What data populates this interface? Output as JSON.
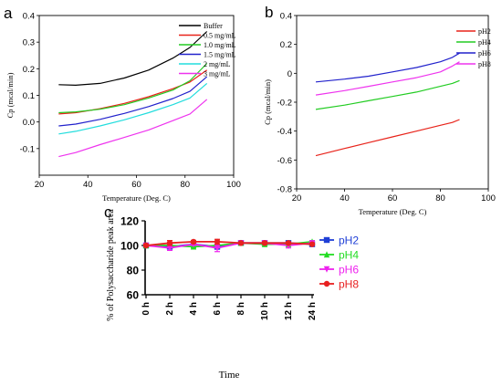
{
  "chart_data": [
    {
      "panel": "a",
      "type": "line",
      "xlabel": "Temperature (Deg. C)",
      "ylabel": "Cp (mcal/min)",
      "xlim": [
        20,
        100
      ],
      "ylim": [
        -0.2,
        0.4
      ],
      "xticks": [
        20,
        40,
        60,
        80,
        100
      ],
      "yticks": [
        -0.1,
        0.0,
        0.1,
        0.2,
        0.3,
        0.4
      ],
      "ytick_labels": [
        "-0.1",
        "0.0",
        "0.1",
        "0.2",
        "0.3",
        "0.4"
      ],
      "grid": false,
      "legend": "top-right",
      "series": [
        {
          "name": "Buffer",
          "color": "#000000",
          "x": [
            28,
            35,
            45,
            55,
            65,
            75,
            82,
            89
          ],
          "y": [
            0.14,
            0.138,
            0.145,
            0.165,
            0.195,
            0.24,
            0.28,
            0.34
          ]
        },
        {
          "name": "0.5 mg/mL",
          "color": "#e8231a",
          "x": [
            28,
            35,
            45,
            55,
            65,
            75,
            82,
            89
          ],
          "y": [
            0.03,
            0.035,
            0.05,
            0.07,
            0.095,
            0.125,
            0.15,
            0.195
          ]
        },
        {
          "name": "1.0 mg/mL",
          "color": "#22cc22",
          "x": [
            28,
            35,
            45,
            55,
            65,
            75,
            82,
            89
          ],
          "y": [
            0.035,
            0.038,
            0.048,
            0.065,
            0.09,
            0.12,
            0.155,
            0.22
          ]
        },
        {
          "name": "1.5 mg/mL",
          "color": "#2222cc",
          "x": [
            28,
            35,
            45,
            55,
            65,
            75,
            82,
            89
          ],
          "y": [
            -0.015,
            -0.008,
            0.01,
            0.032,
            0.058,
            0.088,
            0.115,
            0.17
          ]
        },
        {
          "name": "2 mg/mL",
          "color": "#22dddd",
          "x": [
            28,
            35,
            45,
            55,
            65,
            75,
            82,
            89
          ],
          "y": [
            -0.045,
            -0.035,
            -0.015,
            0.008,
            0.035,
            0.065,
            0.09,
            0.145
          ]
        },
        {
          "name": "3 mg/mL",
          "color": "#ee33ee",
          "x": [
            28,
            35,
            45,
            55,
            65,
            75,
            82,
            89
          ],
          "y": [
            -0.13,
            -0.115,
            -0.085,
            -0.058,
            -0.03,
            0.005,
            0.03,
            0.085
          ]
        }
      ]
    },
    {
      "panel": "b",
      "type": "line",
      "xlabel": "Temperature (Deg. C)",
      "ylabel": "Cp (mcal/min)",
      "xlim": [
        20,
        100
      ],
      "ylim": [
        -0.8,
        0.4
      ],
      "xticks": [
        20,
        40,
        60,
        80,
        100
      ],
      "yticks": [
        -0.8,
        -0.6,
        -0.4,
        -0.2,
        0.0,
        0.2,
        0.4
      ],
      "ytick_labels": [
        "-0.8",
        "-0.6",
        "-0.4",
        "-0.2",
        "0",
        "0.2",
        "0.4"
      ],
      "grid": false,
      "legend": "top-right",
      "series": [
        {
          "name": "pH2",
          "color": "#e8231a",
          "x": [
            28,
            40,
            50,
            60,
            70,
            80,
            85,
            88
          ],
          "y": [
            -0.57,
            -0.52,
            -0.48,
            -0.44,
            -0.4,
            -0.36,
            -0.34,
            -0.32
          ]
        },
        {
          "name": "pH4",
          "color": "#22cc22",
          "x": [
            28,
            40,
            50,
            60,
            70,
            80,
            85,
            88
          ],
          "y": [
            -0.25,
            -0.22,
            -0.19,
            -0.16,
            -0.13,
            -0.09,
            -0.07,
            -0.05
          ]
        },
        {
          "name": "pH6",
          "color": "#2222cc",
          "x": [
            28,
            40,
            50,
            60,
            70,
            80,
            85,
            88
          ],
          "y": [
            -0.06,
            -0.04,
            -0.02,
            0.01,
            0.04,
            0.08,
            0.11,
            0.14
          ]
        },
        {
          "name": "pH8",
          "color": "#ee33ee",
          "x": [
            28,
            40,
            50,
            60,
            70,
            80,
            85,
            88
          ],
          "y": [
            -0.15,
            -0.12,
            -0.09,
            -0.06,
            -0.03,
            0.01,
            0.05,
            0.08
          ]
        }
      ]
    },
    {
      "panel": "c",
      "type": "line",
      "xlabel": "Time",
      "ylabel": "% of Polysaccharide peak area",
      "categories": [
        "0 h",
        "2 h",
        "4 h",
        "6 h",
        "8 h",
        "10 h",
        "12 h",
        "24 h"
      ],
      "ylim": [
        60,
        120
      ],
      "yticks": [
        60,
        80,
        100,
        120
      ],
      "grid": false,
      "legend": "right",
      "series": [
        {
          "name": "pH2",
          "color": "#1f3fd6",
          "marker": "square",
          "values": [
            100,
            99,
            101,
            99,
            102,
            102,
            102,
            101
          ],
          "errors": [
            1,
            1.5,
            1,
            2,
            0.5,
            1,
            1,
            1
          ]
        },
        {
          "name": "pH4",
          "color": "#22dd22",
          "marker": "triangle-up",
          "values": [
            100,
            100,
            99,
            100,
            102,
            101,
            101,
            103
          ],
          "errors": [
            1,
            1,
            1,
            1,
            0.5,
            1,
            1,
            1
          ]
        },
        {
          "name": "pH6",
          "color": "#ee22ee",
          "marker": "triangle-down",
          "values": [
            100,
            98,
            101,
            98,
            102,
            102,
            100,
            102
          ],
          "errors": [
            1,
            2,
            1,
            3,
            0.5,
            1,
            2,
            1
          ]
        },
        {
          "name": "pH8",
          "color": "#e82020",
          "marker": "circle",
          "values": [
            100,
            102,
            103,
            103,
            102,
            102,
            102,
            101
          ],
          "errors": [
            1,
            2,
            1,
            2,
            0.5,
            1,
            1,
            1
          ]
        }
      ]
    }
  ],
  "panel_labels": [
    "a",
    "b",
    "c"
  ]
}
